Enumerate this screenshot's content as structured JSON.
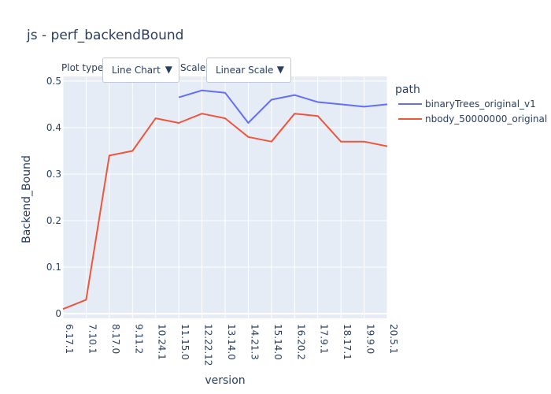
{
  "controls": {
    "plot_type": {
      "label": "Plot type:",
      "value": "Line Chart",
      "arrow_icon": "triangle-down-icon"
    },
    "scale": {
      "label": "Scale:",
      "value": "Linear Scale",
      "arrow_icon": "triangle-down-icon"
    }
  },
  "colors": {
    "plot_bg": "#e5ecf6",
    "grid": "#ffffff",
    "text": "#2a3f5f",
    "binaryTrees": "#636efa",
    "nbody": "#ef553b"
  },
  "chart_data": {
    "type": "line",
    "title": "js - perf_backendBound",
    "xlabel": "version",
    "ylabel": "Backend_Bound",
    "legend_title": "path",
    "legend_position": "top-right, outside plot",
    "grid": true,
    "categories": [
      "6.17.1",
      "7.10.1",
      "8.17.0",
      "9.11.2",
      "10.24.1",
      "11.15.0",
      "12.22.12",
      "13.14.0",
      "14.21.3",
      "15.14.0",
      "16.20.2",
      "17.9.1",
      "18.17.1",
      "19.9.0",
      "20.5.1"
    ],
    "ylim": [
      -0.01,
      0.51
    ],
    "yticks": [
      0,
      0.1,
      0.2,
      0.3,
      0.4,
      0.5
    ],
    "ytick_labels": [
      "0",
      "0.1",
      "0.2",
      "0.3",
      "0.4",
      "0.5"
    ],
    "series": [
      {
        "name": "binaryTrees_original_v1",
        "color": "#636efa",
        "values": [
          null,
          null,
          null,
          null,
          null,
          0.465,
          0.48,
          0.475,
          0.41,
          0.46,
          0.47,
          0.455,
          0.45,
          0.445,
          0.45
        ]
      },
      {
        "name": "nbody_50000000_original",
        "color": "#ef553b",
        "values": [
          0.01,
          0.03,
          0.34,
          0.35,
          0.42,
          0.41,
          0.43,
          0.42,
          0.38,
          0.37,
          0.43,
          0.425,
          0.37,
          0.37,
          0.36
        ]
      }
    ]
  }
}
